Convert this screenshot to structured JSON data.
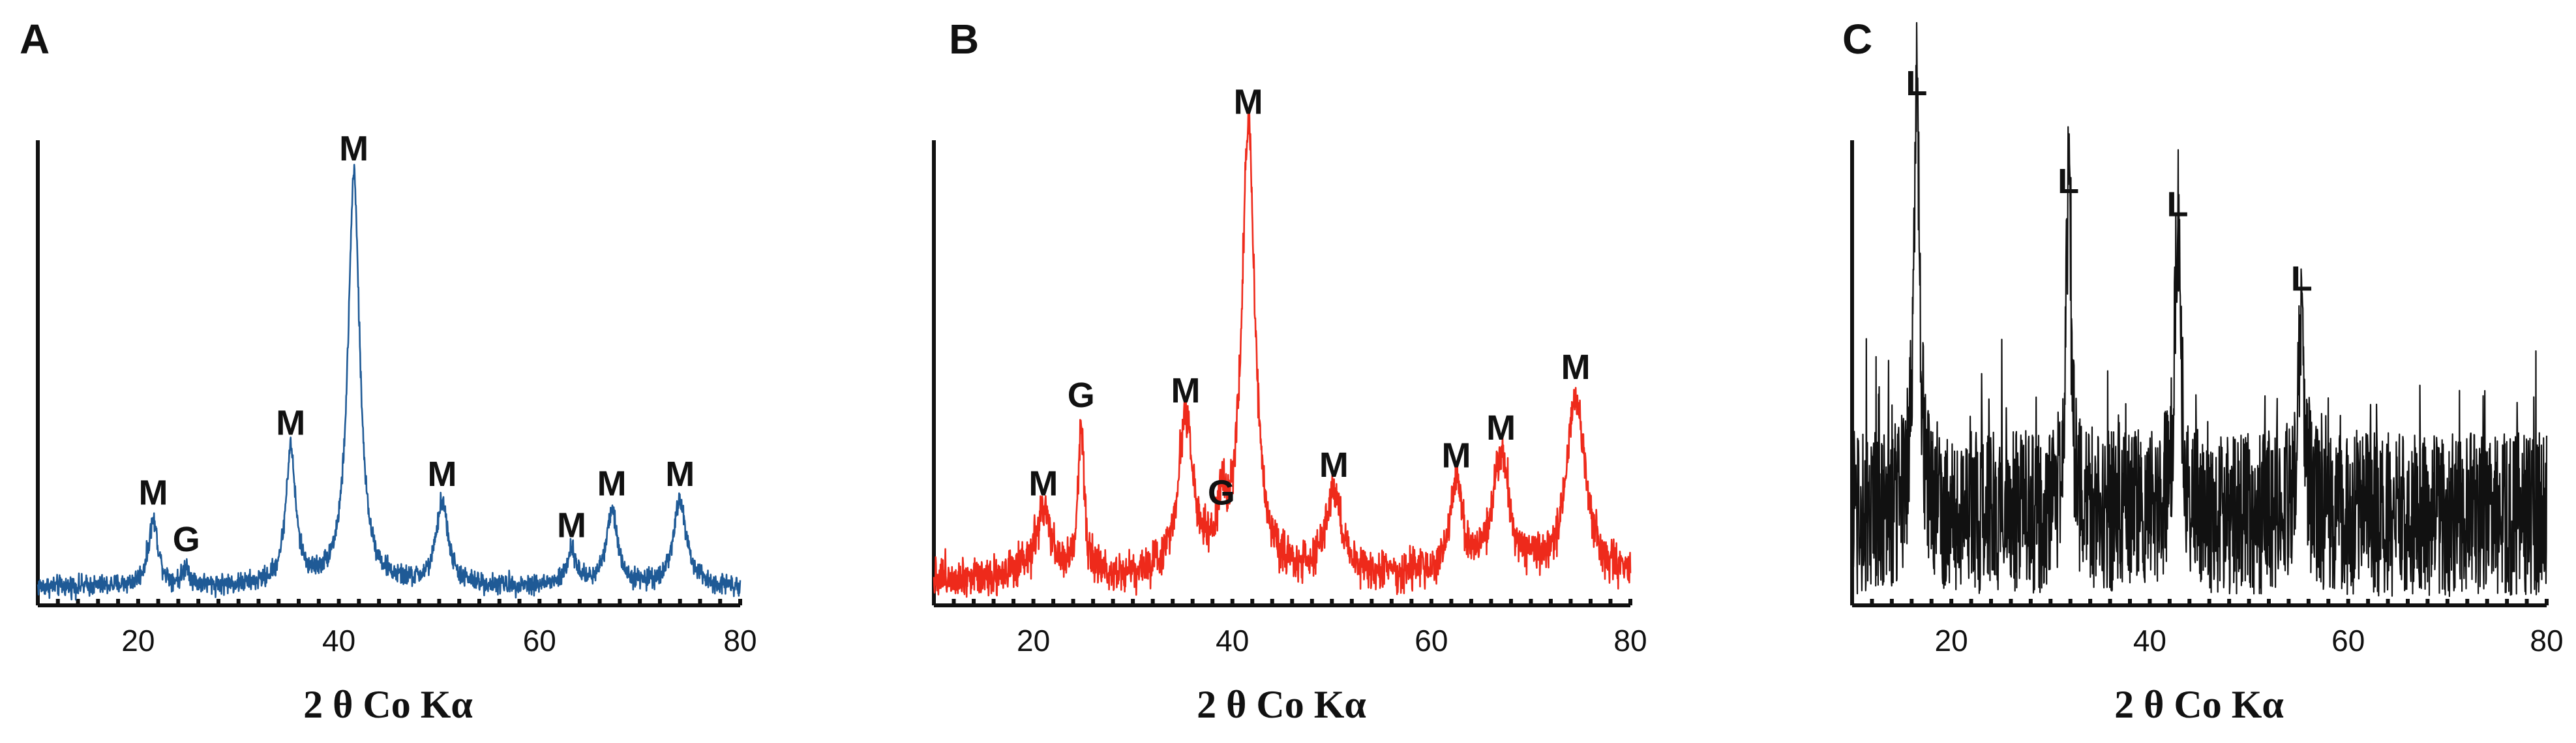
{
  "chart_data": [
    {
      "type": "line",
      "panel": "A",
      "xlabel": "2 θ Co Kα",
      "ylabel": "",
      "xlim": [
        10,
        80
      ],
      "ylim": [
        0,
        100
      ],
      "xticks": [
        20,
        40,
        60,
        80
      ],
      "color": "#1f5a96",
      "noise": "low",
      "baseline": 4,
      "peaks": [
        {
          "x": 21.5,
          "height": 14,
          "width": 0.6,
          "label": "M"
        },
        {
          "x": 24.8,
          "height": 4,
          "width": 0.4,
          "label": "G"
        },
        {
          "x": 35.2,
          "height": 29,
          "width": 0.6,
          "label": "M"
        },
        {
          "x": 41.5,
          "height": 88,
          "width": 0.7,
          "label": "M"
        },
        {
          "x": 50.3,
          "height": 18,
          "width": 0.7,
          "label": "M"
        },
        {
          "x": 63.2,
          "height": 7,
          "width": 0.6,
          "label": "M"
        },
        {
          "x": 67.2,
          "height": 16,
          "width": 0.7,
          "label": "M"
        },
        {
          "x": 74.0,
          "height": 18,
          "width": 0.8,
          "label": "M"
        }
      ]
    },
    {
      "type": "line",
      "panel": "B",
      "xlabel": "2 θ Co Kα",
      "ylabel": "",
      "xlim": [
        10,
        80
      ],
      "ylim": [
        0,
        100
      ],
      "xticks": [
        20,
        40,
        60,
        80
      ],
      "color": "#ee2a1b",
      "noise": "medium",
      "baseline": 6,
      "peaks": [
        {
          "x": 21.0,
          "height": 14,
          "width": 0.9,
          "label": "M"
        },
        {
          "x": 24.8,
          "height": 33,
          "width": 0.35,
          "label": "G"
        },
        {
          "x": 35.3,
          "height": 34,
          "width": 0.9,
          "label": "M"
        },
        {
          "x": 38.9,
          "height": 12,
          "width": 0.4,
          "label": "G"
        },
        {
          "x": 41.6,
          "height": 96,
          "width": 0.8,
          "label": "M"
        },
        {
          "x": 50.2,
          "height": 18,
          "width": 0.9,
          "label": "M"
        },
        {
          "x": 62.5,
          "height": 20,
          "width": 0.7,
          "label": "M"
        },
        {
          "x": 67.0,
          "height": 26,
          "width": 1.0,
          "label": "M"
        },
        {
          "x": 74.5,
          "height": 39,
          "width": 1.1,
          "label": "M"
        }
      ]
    },
    {
      "type": "line",
      "panel": "C",
      "xlabel": "2 θ Co Kα",
      "ylabel": "",
      "xlim": [
        10,
        80
      ],
      "ylim": [
        0,
        100
      ],
      "xticks": [
        20,
        40,
        60,
        80
      ],
      "color": "#111111",
      "noise": "high",
      "baseline": 14,
      "peaks": [
        {
          "x": 16.5,
          "height": 92,
          "width": 0.35,
          "label": "L"
        },
        {
          "x": 31.8,
          "height": 71,
          "width": 0.3,
          "label": "L"
        },
        {
          "x": 42.8,
          "height": 66,
          "width": 0.35,
          "label": "L"
        },
        {
          "x": 55.3,
          "height": 50,
          "width": 0.3,
          "label": "L"
        }
      ]
    }
  ]
}
